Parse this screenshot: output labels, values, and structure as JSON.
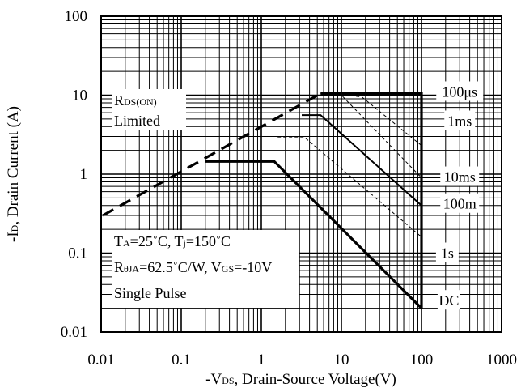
{
  "chart_data": {
    "type": "line",
    "title": "",
    "xlabel": "-VDS, Drain-Source Voltage(V)",
    "ylabel": "-ID, Drain Current (A)",
    "xlabel_parts": {
      "pre": "-V",
      "sub": "DS",
      "post": ", Drain-Source Voltage(V)"
    },
    "ylabel_parts": {
      "pre": "-I",
      "sub": "D",
      "post": ", Drain Current (A)"
    },
    "x_scale": "log",
    "y_scale": "log",
    "xlim": [
      0.01,
      1000
    ],
    "ylim": [
      0.01,
      100
    ],
    "grid": true,
    "x_ticks": [
      {
        "v": 0.01,
        "label": "0.01"
      },
      {
        "v": 0.1,
        "label": "0.1"
      },
      {
        "v": 1,
        "label": "1"
      },
      {
        "v": 10,
        "label": "10"
      },
      {
        "v": 100,
        "label": "100"
      },
      {
        "v": 1000,
        "label": "1000"
      }
    ],
    "y_ticks": [
      {
        "v": 0.01,
        "label": "0.01"
      },
      {
        "v": 0.1,
        "label": "0.1"
      },
      {
        "v": 1,
        "label": "1"
      },
      {
        "v": 10,
        "label": "10"
      },
      {
        "v": 100,
        "label": "100"
      }
    ],
    "series": [
      {
        "name": "RDS(ON) Limited",
        "style": "thick-dashed",
        "points": [
          [
            0.0105,
            0.3
          ],
          [
            5.5,
            10.5
          ]
        ]
      },
      {
        "name": "100μs",
        "style": "thick",
        "points": [
          [
            5.5,
            10.5
          ],
          [
            100,
            10.5
          ],
          [
            100,
            0.02
          ]
        ]
      },
      {
        "name": "1ms",
        "style": "medium",
        "points": [
          [
            3.2,
            5.6
          ],
          [
            5.5,
            5.6
          ],
          [
            100,
            0.4
          ]
        ]
      },
      {
        "name": "10ms",
        "style": "thin-dashed",
        "points": [
          [
            1.6,
            2.9
          ],
          [
            3.5,
            2.9
          ],
          [
            100,
            0.16
          ]
        ]
      },
      {
        "name": "100m",
        "style": "thin-dashed",
        "points": [
          [
            5.5,
            10.5
          ],
          [
            10,
            10
          ],
          [
            100,
            0.9
          ]
        ]
      },
      {
        "name": "1s",
        "style": "thin-dashed",
        "points": [
          [
            8,
            10.5
          ],
          [
            18,
            9.5
          ],
          [
            100,
            2.3
          ]
        ]
      },
      {
        "name": "DC",
        "style": "thick",
        "points": [
          [
            0.2,
            1.45
          ],
          [
            1.45,
            1.45
          ],
          [
            100,
            0.02
          ]
        ]
      }
    ],
    "curve_labels": [
      {
        "text": "100μs",
        "x": 300,
        "y": 11
      },
      {
        "text": "1ms",
        "x": 300,
        "y": 4.7
      },
      {
        "text": "10ms",
        "x": 300,
        "y": 0.92
      },
      {
        "text": "100m",
        "x": 300,
        "y": 0.42
      },
      {
        "text": "1s",
        "x": 210,
        "y": 0.1
      },
      {
        "text": "DC",
        "x": 220,
        "y": 0.025
      }
    ],
    "annotations": {
      "rds": {
        "pre": "R",
        "sub": "DS(ON)",
        "line2": "Limited"
      },
      "cond1": {
        "a": "T",
        "as": "A",
        "b": "=25˚C, T",
        "bs": "j",
        "c": "=150˚C"
      },
      "cond2": {
        "a": "R",
        "as": "θJA",
        "b": "=62.5˚C/W, V",
        "bs": "GS",
        "c": "=-10V"
      },
      "cond3": "Single Pulse"
    }
  }
}
